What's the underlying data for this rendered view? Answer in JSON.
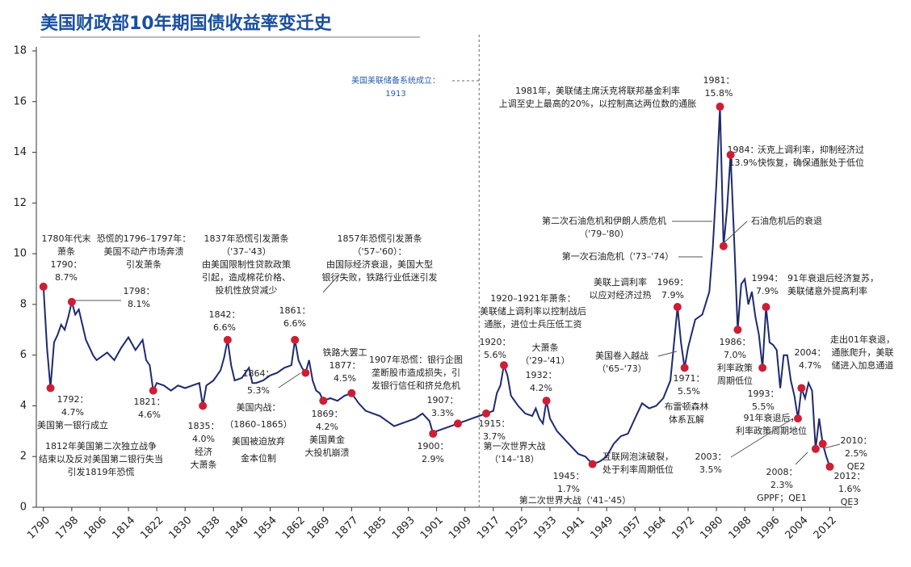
{
  "chart_data": {
    "type": "line",
    "title": "美国财政部10年期国债收益率变迁史",
    "color": "#1f2a6e",
    "dot_color": "#cc1f36",
    "xlim": [
      1788,
      2016
    ],
    "ylim": [
      0,
      18
    ],
    "yticks": [
      0,
      2,
      4,
      6,
      8,
      10,
      12,
      14,
      16,
      18
    ],
    "xticks": [
      1790,
      1798,
      1806,
      1814,
      1822,
      1830,
      1838,
      1846,
      1854,
      1862,
      1869,
      1877,
      1885,
      1893,
      1901,
      1909,
      1917,
      1925,
      1933,
      1941,
      1949,
      1957,
      1964,
      1972,
      1980,
      1988,
      1996,
      2004,
      2012
    ],
    "x": [
      1790,
      1791,
      1792,
      1793,
      1794,
      1795,
      1796,
      1797,
      1798,
      1799,
      1800,
      1801,
      1802,
      1803,
      1804,
      1805,
      1806,
      1808,
      1810,
      1812,
      1814,
      1816,
      1818,
      1819,
      1820,
      1821,
      1822,
      1824,
      1826,
      1828,
      1830,
      1832,
      1834,
      1835,
      1836,
      1838,
      1840,
      1841,
      1842,
      1843,
      1844,
      1846,
      1848,
      1849,
      1850,
      1852,
      1854,
      1856,
      1858,
      1860,
      1861,
      1862,
      1863,
      1864,
      1865,
      1866,
      1867,
      1868,
      1869,
      1871,
      1873,
      1875,
      1877,
      1879,
      1881,
      1883,
      1885,
      1887,
      1889,
      1891,
      1893,
      1895,
      1897,
      1899,
      1900,
      1901,
      1903,
      1905,
      1907,
      1909,
      1911,
      1913,
      1915,
      1917,
      1918,
      1919,
      1920,
      1921,
      1922,
      1924,
      1926,
      1928,
      1929,
      1930,
      1931,
      1932,
      1933,
      1935,
      1937,
      1939,
      1941,
      1943,
      1945,
      1947,
      1949,
      1951,
      1953,
      1955,
      1957,
      1959,
      1961,
      1963,
      1965,
      1967,
      1969,
      1970,
      1971,
      1972,
      1974,
      1976,
      1978,
      1979,
      1980,
      1981,
      1982,
      1983,
      1984,
      1985,
      1986,
      1987,
      1988,
      1989,
      1990,
      1991,
      1992,
      1993,
      1994,
      1995,
      1996,
      1997,
      1998,
      1999,
      2000,
      2001,
      2002,
      2003,
      2004,
      2005,
      2006,
      2007,
      2008,
      2009,
      2010,
      2011,
      2012
    ],
    "values": [
      8.7,
      6.3,
      4.7,
      6.5,
      6.8,
      7.2,
      7.0,
      7.5,
      8.1,
      7.6,
      7.8,
      7.2,
      6.6,
      6.3,
      6.0,
      5.8,
      5.9,
      6.1,
      5.8,
      6.3,
      6.7,
      6.2,
      6.6,
      5.8,
      5.6,
      4.6,
      4.9,
      4.8,
      4.6,
      4.8,
      4.7,
      4.8,
      4.9,
      4.0,
      4.8,
      5.0,
      5.4,
      5.9,
      6.6,
      5.6,
      5.0,
      5.1,
      5.5,
      4.9,
      4.9,
      5.0,
      5.2,
      5.3,
      5.5,
      5.6,
      6.6,
      5.8,
      5.5,
      5.3,
      5.8,
      5.0,
      4.6,
      4.5,
      4.2,
      4.3,
      4.2,
      4.4,
      4.5,
      4.1,
      3.8,
      3.7,
      3.6,
      3.4,
      3.2,
      3.3,
      3.4,
      3.5,
      3.7,
      3.4,
      2.9,
      3.0,
      3.1,
      3.2,
      3.3,
      3.4,
      3.5,
      3.6,
      3.7,
      3.8,
      4.5,
      4.8,
      5.6,
      5.2,
      4.4,
      4.0,
      3.7,
      3.6,
      3.9,
      3.5,
      3.3,
      4.2,
      3.5,
      3.0,
      2.7,
      2.4,
      2.1,
      2.0,
      1.7,
      1.8,
      2.0,
      2.5,
      2.8,
      2.9,
      3.5,
      4.1,
      3.9,
      4.0,
      4.3,
      5.0,
      7.9,
      6.5,
      5.5,
      6.3,
      7.4,
      7.6,
      8.5,
      10.3,
      12.8,
      15.8,
      10.3,
      11.8,
      13.9,
      10.6,
      7.0,
      8.8,
      9.0,
      8.0,
      8.5,
      7.5,
      6.8,
      5.5,
      7.9,
      6.5,
      6.4,
      6.2,
      4.7,
      6.0,
      6.0,
      5.0,
      4.4,
      3.5,
      4.7,
      4.3,
      4.9,
      4.6,
      2.3,
      3.5,
      2.5,
      2.0,
      1.6
    ],
    "annotations": [
      {
        "x": 1790,
        "y": 8.7,
        "lines": [
          "1780年代末",
          "萧条",
          "1790：",
          "8.7%"
        ]
      },
      {
        "lines": [
          "恐慌的1796–1797年：",
          "美国不动产市场奔溃",
          "引发萧条"
        ]
      },
      {
        "x": 1798,
        "y": 8.1,
        "lines": [
          "1798：",
          "8.1%"
        ]
      },
      {
        "lines": [
          "1837年恐慌引发萧条",
          "（'37–'43）",
          "由美国限制性贷款政策",
          "引起，造成棉花价格、",
          "投机性放贷减少"
        ]
      },
      {
        "x": 1842,
        "y": 6.6,
        "lines": [
          "1842：",
          "6.6%"
        ]
      },
      {
        "lines": [
          "1857年恐慌引发萧条",
          "（'57–'60）：",
          "由国际经济衰退，美国大型",
          "银行失败，铁路行业低迷引发"
        ]
      },
      {
        "x": 1861,
        "y": 6.6,
        "lines": [
          "1861：",
          "6.6%"
        ]
      },
      {
        "x": 1792,
        "y": 4.7,
        "lines": [
          "1792：",
          "4.7%",
          "美国第一银行成立"
        ]
      },
      {
        "lines": [
          "1812年美国第二次独立战争",
          "结束以及反对美国第二银行失当",
          "引发1819年恐慌"
        ]
      },
      {
        "x": 1821,
        "y": 4.6,
        "lines": [
          "1821：",
          "4.6%"
        ]
      },
      {
        "x": 1835,
        "y": 4.0,
        "lines": [
          "1835：",
          "4.0%",
          "经济",
          "大萧条"
        ]
      },
      {
        "x": 1864,
        "y": 5.3,
        "lines": [
          "1864：",
          "5.3%",
          "美国内战：",
          "（1860–1865）",
          "美国被迫放弃",
          "金本位制"
        ]
      },
      {
        "x": 1869,
        "y": 4.2,
        "lines": [
          "1869：",
          "4.2%",
          "美国黄金",
          "大投机崩溃"
        ]
      },
      {
        "x": 1877,
        "y": 4.5,
        "lines": [
          "铁路大罢工",
          "1877：",
          "4.5%"
        ]
      },
      {
        "lines": [
          "1907年恐慌：银行企图",
          "垄断股市造成损失，引",
          "发银行信任和挤兑危机"
        ]
      },
      {
        "x": 1907,
        "y": 3.3,
        "lines": [
          "1907：",
          "3.3%"
        ]
      },
      {
        "x": 1900,
        "y": 2.9,
        "lines": [
          "1900：",
          "2.9%"
        ]
      },
      {
        "x": 1913,
        "marker": "vline",
        "lines": [
          "美国美联储备系统成立：",
          "1913"
        ]
      },
      {
        "x": 1915,
        "y": 3.7,
        "lines": [
          "1915：",
          "3.7%"
        ]
      },
      {
        "lines": [
          "1920–1921年萧条：",
          "美联储上调利率以控制战后",
          "通胀，进位士兵压低工资"
        ]
      },
      {
        "x": 1920,
        "y": 5.6,
        "lines": [
          "1920：",
          "5.6%"
        ]
      },
      {
        "lines": [
          "大萧条",
          "（'29–'41）"
        ]
      },
      {
        "x": 1932,
        "y": 4.2,
        "lines": [
          "1932：",
          "4.2%"
        ]
      },
      {
        "lines": [
          "第一次世界大战",
          "（'14–'18）"
        ]
      },
      {
        "x": 1945,
        "y": 1.7,
        "lines": [
          "1945：",
          "1.7%"
        ]
      },
      {
        "lines": [
          "第二次世界大战（'41–'45）"
        ]
      },
      {
        "lines": [
          "1981年，美联储主席沃克将联邦基金利率",
          "上调至史上最高的20%，以控制高达两位数的通胀"
        ]
      },
      {
        "x": 1981,
        "y": 15.8,
        "lines": [
          "1981：",
          "15.8%"
        ]
      },
      {
        "x": 1984,
        "y": 13.9,
        "lines": [
          "1984：",
          "13.9%"
        ]
      },
      {
        "lines": [
          "沃克上调利率，抑制经济过",
          "快恢复，确保通胀处于低位"
        ]
      },
      {
        "lines": [
          "第二次石油危机和伊朗人质危机",
          "（'79–'80）"
        ]
      },
      {
        "x": 1982,
        "y": 10.3,
        "lines": [
          "石油危机后的衰退"
        ]
      },
      {
        "lines": [
          "第一次石油危机（'73–'74）"
        ]
      },
      {
        "lines": [
          "美联上调利率",
          "以应对经济过热"
        ]
      },
      {
        "x": 1969,
        "y": 7.9,
        "lines": [
          "1969：",
          "7.9%"
        ]
      },
      {
        "x": 1994,
        "y": 7.9,
        "lines": [
          "1994：",
          "7.9%"
        ]
      },
      {
        "lines": [
          "91年衰退后经济复苏，",
          "美联储意外提高利率"
        ]
      },
      {
        "lines": [
          "美国卷入越战",
          "（'65–'73）"
        ]
      },
      {
        "x": 1971,
        "y": 5.5,
        "lines": [
          "1971：",
          "5.5%"
        ]
      },
      {
        "lines": [
          "布雷顿森林",
          "体系瓦解"
        ]
      },
      {
        "x": 1986,
        "y": 7.0,
        "lines": [
          "1986：",
          "7.0%",
          "利率政策",
          "周期低位"
        ]
      },
      {
        "x": 1993,
        "y": 5.5,
        "lines": [
          "1993：",
          "5.5%"
        ]
      },
      {
        "lines": [
          "91年衰退后，",
          "利率政策周期地位"
        ]
      },
      {
        "x": 2004,
        "y": 4.7,
        "lines": [
          "2004：",
          "4.7%"
        ]
      },
      {
        "lines": [
          "走出01年衰退，",
          "通胀爬升，美联",
          "储进入加息通道"
        ]
      },
      {
        "lines": [
          "互联网泡沫破裂，",
          "处于利率周期低位"
        ]
      },
      {
        "x": 2003,
        "y": 3.5,
        "lines": [
          "2003：",
          "3.5%"
        ]
      },
      {
        "x": 2008,
        "y": 2.3,
        "lines": [
          "2008：",
          "2.3%",
          "GPPF；QE1"
        ]
      },
      {
        "x": 2010,
        "y": 2.5,
        "lines": [
          "2010：",
          "2.5%",
          "QE2"
        ]
      },
      {
        "x": 2012,
        "y": 1.6,
        "lines": [
          "2012：",
          "1.6%",
          "QE3"
        ]
      }
    ]
  }
}
